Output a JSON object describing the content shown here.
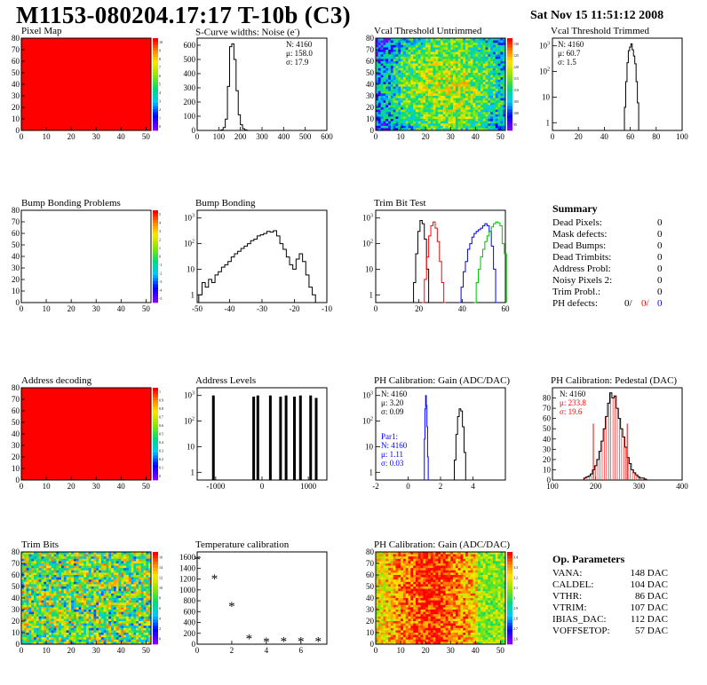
{
  "header": {
    "title": "M1153-080204.17:17 T-10b (C3)",
    "date": "Sat Nov 15 11:51:12 2008"
  },
  "chart_data": [
    {
      "id": "pixel-map",
      "type": "heatmap",
      "title": "Pixel Map",
      "xlim": [
        0,
        52
      ],
      "ylim": [
        0,
        80
      ],
      "xticks": [
        0,
        10,
        20,
        30,
        40,
        50
      ],
      "yticks": [
        0,
        10,
        20,
        30,
        40,
        50,
        60,
        70,
        80
      ],
      "fill": "uniform",
      "fill_color": "#ff0000",
      "palette": "rainbow",
      "palette_ticks": [
        "10",
        "9",
        "8",
        "7",
        "6",
        "5",
        "4",
        "3",
        "2",
        "1",
        "0"
      ]
    },
    {
      "id": "scurve",
      "type": "line",
      "title": "S-Curve widths: Noise (e",
      "title_sup": "-",
      "title_end": ")",
      "xlim": [
        0,
        600
      ],
      "ylim": [
        0,
        650
      ],
      "xticks": [
        0,
        100,
        200,
        300,
        400,
        500,
        600
      ],
      "yticks": [
        0,
        100,
        200,
        300,
        400,
        500,
        600
      ],
      "stats": [
        "N: 4160",
        "μ: 158.0",
        "σ: 17.9"
      ],
      "x": [
        105,
        115,
        125,
        135,
        145,
        155,
        165,
        175,
        185,
        195,
        205,
        215,
        225,
        235
      ],
      "values": [
        0,
        4,
        20,
        80,
        310,
        590,
        610,
        500,
        280,
        110,
        40,
        12,
        4,
        0
      ]
    },
    {
      "id": "vcal-untrimmed",
      "type": "heatmap",
      "title": "Vcal Threshold Untrimmed",
      "xlim": [
        0,
        52
      ],
      "ylim": [
        0,
        80
      ],
      "xticks": [
        0,
        10,
        20,
        30,
        40,
        50
      ],
      "yticks": [
        0,
        10,
        20,
        30,
        40,
        50,
        60,
        70,
        80
      ],
      "fill": "noise",
      "palette": "rainbow",
      "palette_ticks": [
        "130",
        "125",
        "120",
        "115",
        "110",
        "105",
        "100",
        "95"
      ]
    },
    {
      "id": "vcal-trimmed",
      "type": "line",
      "title": "Vcal Threshold Trimmed",
      "log": true,
      "xlim": [
        0,
        100
      ],
      "ylim": [
        0.5,
        2000
      ],
      "xticks": [
        0,
        20,
        40,
        60,
        80,
        100
      ],
      "ylogticks": [
        1,
        10,
        100,
        1000
      ],
      "stats": [
        "N: 4160",
        "μ: 60.7",
        "σ:  1.5"
      ],
      "x": [
        55,
        56,
        57,
        58,
        59,
        60,
        61,
        62,
        63,
        64,
        65,
        66,
        67
      ],
      "values": [
        0,
        4,
        40,
        220,
        650,
        900,
        1200,
        700,
        400,
        200,
        40,
        6,
        0
      ]
    },
    {
      "id": "bump-problems",
      "type": "heatmap",
      "title": "Bump Bonding Problems",
      "xlim": [
        0,
        52
      ],
      "ylim": [
        0,
        80
      ],
      "xticks": [
        0,
        10,
        20,
        30,
        40,
        50
      ],
      "yticks": [
        0,
        10,
        20,
        30,
        40,
        50,
        60,
        70,
        80
      ],
      "fill": "empty",
      "palette": "rainbow",
      "palette_ticks": [
        "5",
        "4",
        "3",
        "2",
        "1",
        "0",
        "-1",
        "-2",
        "-3",
        "-4",
        "-5"
      ]
    },
    {
      "id": "bump-bonding",
      "type": "line",
      "title": "Bump Bonding",
      "log": true,
      "xlim": [
        -50,
        -10
      ],
      "ylim": [
        0.5,
        2000
      ],
      "xticks": [
        -50,
        -40,
        -30,
        -20,
        -10
      ],
      "ylogticks": [
        1,
        10,
        100,
        1000
      ],
      "x": [
        -49,
        -48,
        -47,
        -46,
        -45,
        -44,
        -43,
        -42,
        -41,
        -40,
        -39,
        -38,
        -37,
        -36,
        -35,
        -34,
        -33,
        -32,
        -31,
        -30,
        -29,
        -28,
        -27,
        -26,
        -25,
        -24,
        -23,
        -22,
        -21,
        -20,
        -19,
        -18,
        -17,
        -16,
        -15,
        -14,
        -13
      ],
      "values": [
        1,
        3,
        2,
        4,
        3,
        6,
        8,
        12,
        15,
        20,
        30,
        40,
        50,
        65,
        80,
        100,
        130,
        150,
        200,
        220,
        250,
        300,
        280,
        320,
        200,
        100,
        60,
        30,
        15,
        10,
        25,
        40,
        20,
        6,
        2,
        1,
        0
      ]
    },
    {
      "id": "trim-bit-test",
      "type": "line",
      "title": "Trim Bit Test",
      "log": true,
      "xlim": [
        0,
        60
      ],
      "ylim": [
        0.5,
        2000
      ],
      "xticks": [
        0,
        20,
        40,
        60
      ],
      "ylogticks": [
        1,
        10,
        100,
        1000
      ],
      "series": [
        {
          "color": "#000000",
          "x": [
            17,
            18,
            19,
            20,
            21,
            22,
            23,
            24,
            25
          ],
          "values": [
            0,
            3,
            40,
            300,
            800,
            600,
            150,
            10,
            0
          ]
        },
        {
          "color": "#ff0000",
          "x": [
            22,
            23,
            24,
            25,
            26,
            27,
            28,
            29,
            30,
            31,
            32
          ],
          "values": [
            0,
            4,
            30,
            200,
            500,
            700,
            400,
            120,
            20,
            3,
            0
          ]
        },
        {
          "color": "#0000ff",
          "x": [
            39,
            40,
            41,
            42,
            43,
            44,
            45,
            46,
            47,
            48,
            49,
            50,
            51,
            52,
            53,
            54,
            55,
            56
          ],
          "values": [
            0,
            2,
            8,
            20,
            60,
            100,
            180,
            250,
            300,
            350,
            400,
            500,
            600,
            500,
            300,
            80,
            10,
            0
          ]
        },
        {
          "color": "#00c000",
          "x": [
            46,
            47,
            48,
            49,
            50,
            51,
            52,
            53,
            54,
            55,
            56,
            57,
            58,
            59,
            60
          ],
          "values": [
            0,
            3,
            10,
            30,
            60,
            120,
            200,
            300,
            450,
            600,
            700,
            650,
            500,
            100,
            40
          ]
        }
      ]
    },
    {
      "id": "address-decoding",
      "type": "heatmap",
      "title": "Address decoding",
      "xlim": [
        0,
        52
      ],
      "ylim": [
        0,
        80
      ],
      "xticks": [
        0,
        10,
        20,
        30,
        40,
        50
      ],
      "yticks": [
        0,
        10,
        20,
        30,
        40,
        50,
        60,
        70,
        80
      ],
      "fill": "uniform",
      "fill_color": "#ff0000",
      "palette": "rainbow",
      "palette_ticks": [
        "1",
        "0.9",
        "0.8",
        "0.7",
        "0.6",
        "0.5",
        "0.4",
        "0.3",
        "0.2",
        "0.1",
        "0"
      ]
    },
    {
      "id": "address-levels",
      "type": "bar",
      "title": "Address Levels",
      "log": true,
      "xlim": [
        -1400,
        1400
      ],
      "ylim": [
        0.5,
        2000
      ],
      "xticks": [
        -1000,
        0,
        1000
      ],
      "ylogticks": [
        1,
        10,
        100,
        1000
      ],
      "x": [
        -1050,
        -180,
        -90,
        180,
        400,
        520,
        700,
        830,
        1050,
        1170
      ],
      "values": [
        1000,
        900,
        1000,
        1000,
        900,
        1000,
        900,
        1000,
        1000,
        800
      ]
    },
    {
      "id": "ph-gain",
      "type": "line",
      "title": "PH Calibration: Gain (ADC/DAC)",
      "log": true,
      "xlim": [
        -2,
        6
      ],
      "ylim": [
        0.5,
        2000
      ],
      "xticks": [
        -2,
        0,
        2,
        4
      ],
      "ylogticks": [
        1,
        10,
        100,
        1000
      ],
      "stats": [
        "N: 4160",
        "μ: 3.20",
        "σ: 0.09"
      ],
      "stats_blue": [
        "Par1:",
        "N: 4160",
        "μ: 1.11",
        "σ: 0.03"
      ],
      "series": [
        {
          "color": "#000000",
          "x": [
            2.8,
            2.9,
            3.0,
            3.1,
            3.2,
            3.3,
            3.4,
            3.5,
            3.6
          ],
          "values": [
            0,
            3,
            30,
            150,
            300,
            250,
            60,
            6,
            0
          ]
        },
        {
          "color": "#0000ff",
          "x": [
            0.98,
            1.02,
            1.06,
            1.1,
            1.14,
            1.18,
            1.22,
            1.26
          ],
          "values": [
            0,
            20,
            300,
            1000,
            400,
            60,
            4,
            0
          ]
        }
      ]
    },
    {
      "id": "ph-pedestal",
      "type": "line",
      "title": "PH Calibration: Pedestal (DAC)",
      "xlim": [
        100,
        400
      ],
      "ylim": [
        0,
        90
      ],
      "xticks": [
        100,
        200,
        300,
        400
      ],
      "yticks": [
        0,
        10,
        20,
        30,
        40,
        50,
        60,
        70,
        80
      ],
      "stats": [
        "N: 4160"
      ],
      "stats_red": [
        "μ: 233.8",
        "σ: 19.6"
      ],
      "mean": 233.8,
      "sigma": 19.6,
      "x": [
        175,
        180,
        185,
        190,
        195,
        200,
        205,
        210,
        215,
        220,
        225,
        230,
        235,
        240,
        245,
        250,
        255,
        260,
        265,
        270,
        275,
        280,
        285,
        290,
        295,
        300,
        305,
        310,
        315
      ],
      "values": [
        2,
        3,
        4,
        6,
        10,
        14,
        20,
        28,
        38,
        50,
        62,
        75,
        85,
        80,
        82,
        70,
        60,
        50,
        42,
        32,
        22,
        16,
        10,
        7,
        5,
        3,
        2,
        2,
        1
      ]
    },
    {
      "id": "trim-bits",
      "type": "heatmap",
      "title": "Trim Bits",
      "xlim": [
        0,
        52
      ],
      "ylim": [
        0,
        80
      ],
      "xticks": [
        0,
        10,
        20,
        30,
        40,
        50
      ],
      "yticks": [
        0,
        10,
        20,
        30,
        40,
        50,
        60,
        70,
        80
      ],
      "fill": "trim",
      "palette": "rainbow",
      "palette_ticks": [
        "16",
        "14",
        "12",
        "10",
        "8",
        "6",
        "4",
        "2",
        "0"
      ]
    },
    {
      "id": "temperature-calibration",
      "type": "scatter",
      "title": "Temperature calibration",
      "xlim": [
        0,
        7.5
      ],
      "ylim": [
        0,
        1700
      ],
      "xticks": [
        0,
        2,
        4,
        6
      ],
      "yticks": [
        0,
        200,
        400,
        600,
        800,
        1000,
        1200,
        1400,
        1600
      ],
      "x": [
        0,
        1,
        2,
        3,
        4,
        5,
        6,
        7
      ],
      "values": [
        1560,
        1210,
        700,
        110,
        50,
        60,
        55,
        55
      ]
    },
    {
      "id": "ph-gain-map",
      "type": "heatmap",
      "title": "PH Calibration: Gain (ADC/DAC)",
      "xlim": [
        0,
        52
      ],
      "ylim": [
        0,
        80
      ],
      "xticks": [
        0,
        10,
        20,
        30,
        40,
        50
      ],
      "yticks": [
        0,
        10,
        20,
        30,
        40,
        50,
        60,
        70,
        80
      ],
      "fill": "gain",
      "palette": "rainbow",
      "palette_ticks": [
        "3.4",
        "3.3",
        "3.2",
        "3.1",
        "3",
        "2.9",
        "2.8",
        "2.7",
        "2.6"
      ]
    }
  ],
  "summary": {
    "title": "Summary",
    "rows": [
      {
        "label": "Dead Pixels:",
        "value": "0"
      },
      {
        "label": "Mask defects:",
        "value": "0"
      },
      {
        "label": "Dead Bumps:",
        "value": "0"
      },
      {
        "label": "Dead Trimbits:",
        "value": "0"
      },
      {
        "label": "Address Probl:",
        "value": "0"
      },
      {
        "label": "Noisy Pixels 2:",
        "value": "0"
      },
      {
        "label": "Trim Probl.:",
        "value": "0"
      }
    ],
    "ph": {
      "label": "PH defects:",
      "v1": "0/",
      "v2": "0/",
      "v3": "0"
    }
  },
  "op_params": {
    "title": "Op. Parameters",
    "rows": [
      {
        "label": "VANA:",
        "value": "148 DAC"
      },
      {
        "label": "CALDEL:",
        "value": "104 DAC"
      },
      {
        "label": "VTHR:",
        "value": "86 DAC"
      },
      {
        "label": "VTRIM:",
        "value": "107 DAC"
      },
      {
        "label": "IBIAS_DAC:",
        "value": "112 DAC"
      },
      {
        "label": "VOFFSETOP:",
        "value": "57 DAC"
      }
    ]
  },
  "colors": {
    "red": "#ff0000",
    "blue": "#0000ff",
    "green": "#00c000"
  }
}
